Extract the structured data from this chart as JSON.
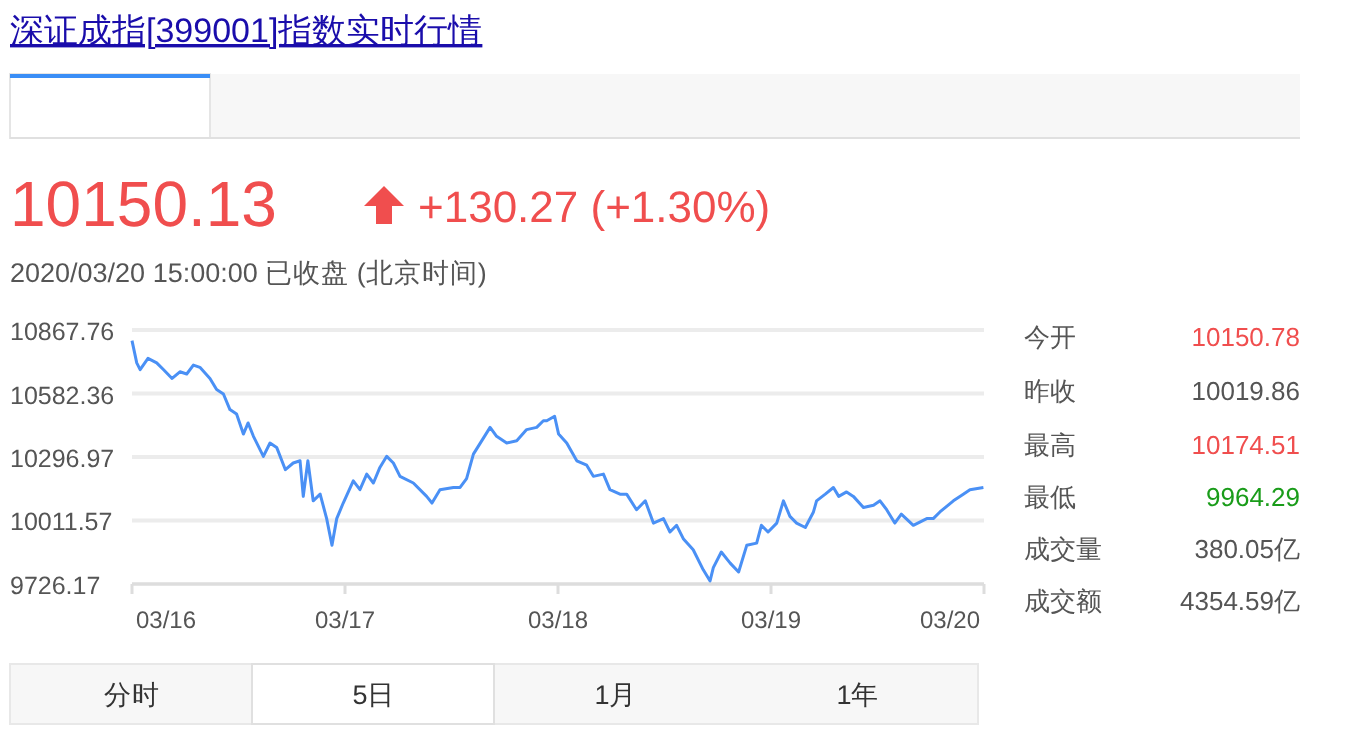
{
  "chart_data": {
    "type": "line",
    "title": "深证成指[399001]指数实时行情",
    "color": "#4a90f5",
    "grid": "y",
    "xlim": [
      "2020-03-16",
      "2020-03-20"
    ],
    "ylim": [
      9726.17,
      10867.76
    ],
    "xticks": [
      {
        "value": "2020-03-16",
        "label": "03/16"
      },
      {
        "value": "2020-03-17",
        "label": "03/17"
      },
      {
        "value": "2020-03-18",
        "label": "03/18"
      },
      {
        "value": "2020-03-19",
        "label": "03/19"
      },
      {
        "value": "2020-03-20",
        "label": "03/20"
      }
    ],
    "yticks": [
      9726.17,
      10011.57,
      10296.97,
      10582.36,
      10867.76
    ],
    "x": [
      "2020-03-16T00:00",
      "2020-03-16T00:32",
      "2020-03-16T00:55",
      "2020-03-16T01:48",
      "2020-03-16T02:47",
      "2020-03-16T03:32",
      "2020-03-16T04:31",
      "2020-03-16T05:24",
      "2020-03-16T06:10",
      "2020-03-16T06:55",
      "2020-03-16T07:39",
      "2020-03-16T08:47",
      "2020-03-16T09:32",
      "2020-03-16T10:18",
      "2020-03-16T11:02",
      "2020-03-16T11:47",
      "2020-03-16T12:33",
      "2020-03-16T13:05",
      "2020-03-16T13:41",
      "2020-03-16T14:48",
      "2020-03-16T15:33",
      "2020-03-16T16:18",
      "2020-03-16T17:17",
      "2020-03-16T18:10",
      "2020-03-16T18:56",
      "2020-03-16T19:18",
      "2020-03-16T19:49",
      "2020-03-16T20:25",
      "2020-03-16T21:12",
      "2020-03-16T21:56",
      "2020-03-16T22:32",
      "2020-03-16T23:04",
      "2020-03-16T23:48",
      "2020-03-17T00:56",
      "2020-03-17T01:41",
      "2020-03-17T02:27",
      "2020-03-17T03:12",
      "2020-03-17T03:56",
      "2020-03-17T04:42",
      "2020-03-17T05:27",
      "2020-03-17T06:12",
      "2020-03-17T07:42",
      "2020-03-17T09:12",
      "2020-03-17T09:48",
      "2020-03-17T10:42",
      "2020-03-17T12:13",
      "2020-03-17T12:58",
      "2020-03-17T13:42",
      "2020-03-17T14:28",
      "2020-03-17T16:21",
      "2020-03-17T17:05",
      "2020-03-17T18:13",
      "2020-03-17T19:21",
      "2020-03-17T20:28",
      "2020-03-17T21:36",
      "2020-03-17T22:21",
      "2020-03-17T22:44",
      "2020-03-17T23:37",
      "2020-03-18T00:04",
      "2020-03-18T00:59",
      "2020-03-18T02:07",
      "2020-03-18T03:14",
      "2020-03-18T03:59",
      "2020-03-18T05:07",
      "2020-03-18T05:51",
      "2020-03-18T06:59",
      "2020-03-18T07:44",
      "2020-03-18T08:51",
      "2020-03-18T09:50",
      "2020-03-18T10:45",
      "2020-03-18T11:53",
      "2020-03-18T12:37",
      "2020-03-18T13:22",
      "2020-03-18T14:07",
      "2020-03-18T15:14",
      "2020-03-18T16:22",
      "2020-03-18T17:08",
      "2020-03-18T17:30",
      "2020-03-18T18:24",
      "2020-03-18T19:24",
      "2020-03-18T20:21",
      "2020-03-18T21:16",
      "2020-03-18T22:23",
      "2020-03-18T22:55",
      "2020-03-18T23:40",
      "2020-03-19T00:39",
      "2020-03-19T01:24",
      "2020-03-19T02:08",
      "2020-03-19T02:53",
      "2020-03-19T03:52",
      "2020-03-19T04:47",
      "2020-03-19T05:08",
      "2020-03-19T06:07",
      "2020-03-19T07:02",
      "2020-03-19T07:38",
      "2020-03-19T08:31",
      "2020-03-19T09:17",
      "2020-03-19T10:25",
      "2020-03-19T11:33",
      "2020-03-19T12:17",
      "2020-03-19T13:02",
      "2020-03-19T13:57",
      "2020-03-19T14:41",
      "2020-03-19T16:02",
      "2020-03-19T17:33",
      "2020-03-19T18:17",
      "2020-03-19T19:02",
      "2020-03-19T20:33",
      "2020-03-19T21:40",
      "2020-03-19T22:25",
      "2020-03-19T23:56"
    ],
    "values": [
      10820,
      10720,
      10690,
      10740,
      10720,
      10690,
      10650,
      10680,
      10670,
      10710,
      10700,
      10650,
      10600,
      10580,
      10510,
      10490,
      10400,
      10450,
      10390,
      10300,
      10360,
      10340,
      10240,
      10270,
      10280,
      10120,
      10280,
      10100,
      10130,
      10020,
      9900,
      10020,
      10090,
      10190,
      10150,
      10220,
      10180,
      10250,
      10300,
      10270,
      10210,
      10180,
      10120,
      10090,
      10150,
      10160,
      10160,
      10200,
      10310,
      10430,
      10390,
      10360,
      10370,
      10420,
      10430,
      10460,
      10460,
      10480,
      10400,
      10360,
      10280,
      10260,
      10210,
      10220,
      10150,
      10130,
      10130,
      10060,
      10100,
      10000,
      10020,
      9960,
      9990,
      9930,
      9880,
      9790,
      9740,
      9800,
      9870,
      9820,
      9780,
      9900,
      9910,
      9990,
      9960,
      10000,
      10100,
      10030,
      10000,
      9980,
      10050,
      10100,
      10130,
      10160,
      10120,
      10140,
      10120,
      10070,
      10080,
      10100,
      10060,
      10000,
      10040,
      9990,
      10020,
      10020,
      10050,
      10100,
      10130,
      10150,
      10160
    ],
    "annotations": [
      "10150.13",
      "+130.27 (+1.30%)",
      "2020/03/20 15:00:00   已收盘   (北京时间)",
      "今开",
      "10150.78",
      "昨收",
      "10019.86",
      "最高",
      "10174.51",
      "最低",
      "9964.29",
      "成交量",
      "380.05亿",
      "成交额",
      "4354.59亿",
      "分时",
      "5日",
      "1月",
      "1年"
    ]
  }
}
